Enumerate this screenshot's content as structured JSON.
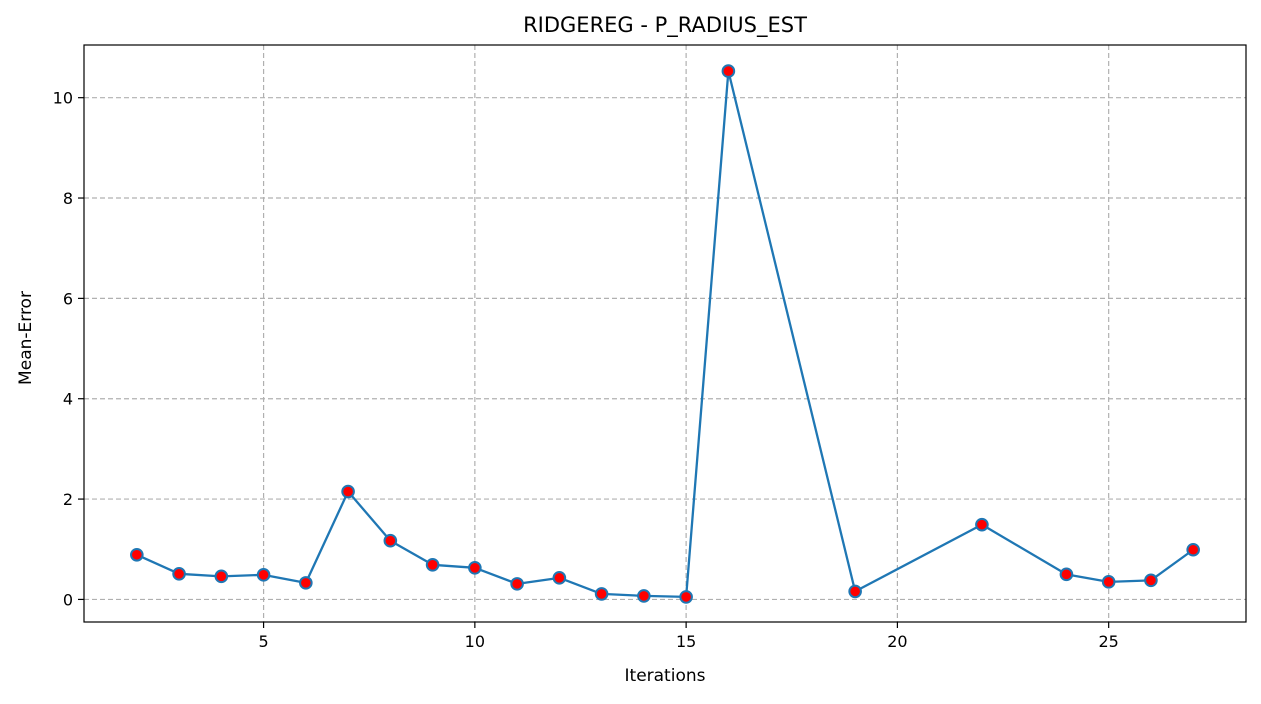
{
  "chart_data": {
    "type": "line",
    "title": "RIDGEREG - P_RADIUS_EST",
    "xlabel": "Iterations",
    "ylabel": "Mean-Error",
    "xlim": [
      0.75,
      28.25
    ],
    "ylim": [
      -0.45,
      11.05
    ],
    "x_ticks": [
      5,
      10,
      15,
      20,
      25
    ],
    "y_ticks": [
      0,
      2,
      4,
      6,
      8,
      10
    ],
    "grid": true,
    "series": [
      {
        "x": [
          2,
          3,
          4,
          5,
          6,
          7,
          8,
          9,
          10,
          11,
          12,
          13,
          14,
          15,
          16,
          19,
          22,
          24,
          25,
          26,
          27
        ],
        "y": [
          0.89,
          0.51,
          0.46,
          0.49,
          0.33,
          2.15,
          1.17,
          0.69,
          0.63,
          0.31,
          0.43,
          0.11,
          0.07,
          0.05,
          10.53,
          0.16,
          1.49,
          0.5,
          0.35,
          0.38,
          0.99
        ]
      }
    ],
    "colors": {
      "line": "#1f77b4",
      "marker_fill": "#ff0000",
      "marker_edge": "#1f77b4",
      "grid": "#b0b0b0"
    }
  }
}
